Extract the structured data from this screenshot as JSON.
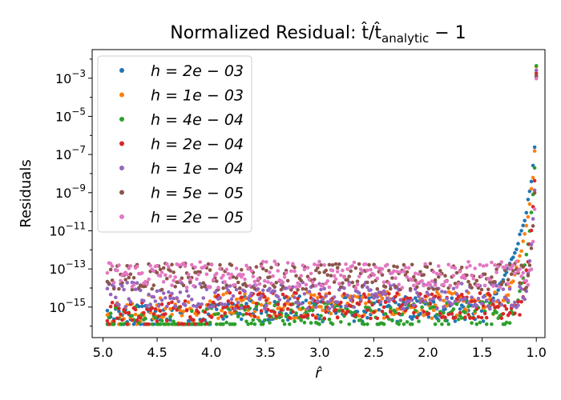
{
  "chart_data": {
    "type": "scatter",
    "title": "Normalized Residual: t̂/t̂",
    "title_sub": "analytic",
    "title_tail": " − 1",
    "xlabel": "r̂",
    "ylabel": "Residuals",
    "x_reversed": true,
    "xlim": [
      5.1,
      0.92
    ],
    "ylim_log10": [
      -16.6,
      -1.5
    ],
    "y_scale": "log",
    "x_ticks": [
      "5.0",
      "4.5",
      "4.0",
      "3.5",
      "3.0",
      "2.5",
      "2.0",
      "1.5",
      "1.0"
    ],
    "x_tick_values": [
      5.0,
      4.5,
      4.0,
      3.5,
      3.0,
      2.5,
      2.0,
      1.5,
      1.0
    ],
    "y_tick_exponents": [
      -3,
      -5,
      -7,
      -9,
      -11,
      -13,
      -15
    ],
    "y_tick_base": "10",
    "legend_position": "upper-left",
    "series": [
      {
        "name": "h = 2e − 03",
        "color": "#1f77b4"
      },
      {
        "name": "h = 1e − 03",
        "color": "#ff7f0e"
      },
      {
        "name": "h = 4e − 04",
        "color": "#2ca02c"
      },
      {
        "name": "h = 2e − 04",
        "color": "#d62728"
      },
      {
        "name": "h = 1e − 04",
        "color": "#9467bd"
      },
      {
        "name": "h = 5e − 05",
        "color": "#8c564b"
      },
      {
        "name": "h = 2e − 05",
        "color": "#e377c2"
      }
    ],
    "approx_residual_peaks_log10": [
      -3.0,
      -2.5,
      -2.4,
      -2.6,
      -2.7,
      -2.8,
      -2.9
    ],
    "noise_floor_log10": -15.8
  }
}
